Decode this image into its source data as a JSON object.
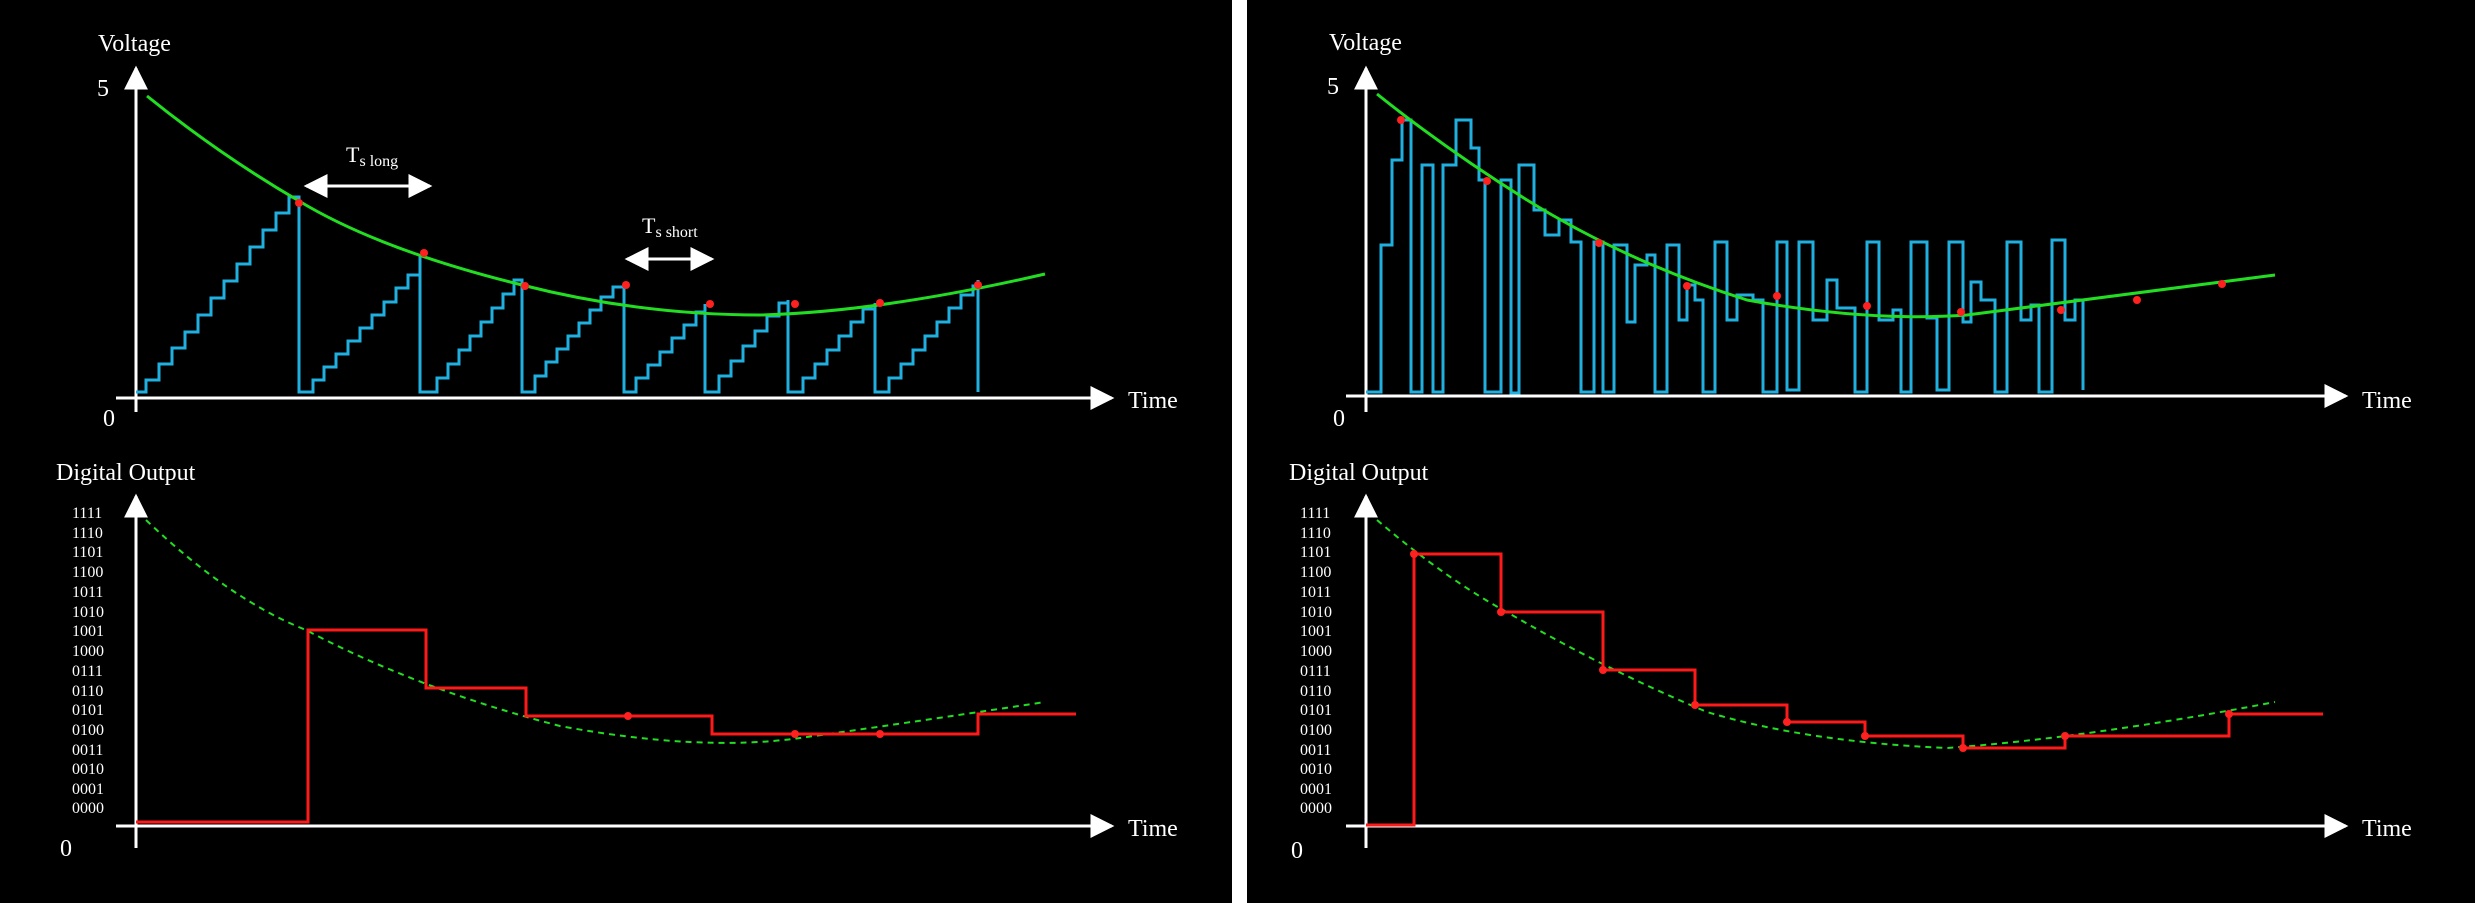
{
  "left": {
    "top": {
      "y_title": "Voltage",
      "y_max_label": "5",
      "origin_label": "0",
      "x_title": "Time",
      "ts_long": {
        "main": "T",
        "sub_s": "s",
        "sub_word": "long"
      },
      "ts_short": {
        "main": "T",
        "sub_s": "s",
        "sub_word": "short"
      }
    },
    "bottom": {
      "y_title": "Digital Output",
      "origin_label": "0",
      "x_title": "Time"
    }
  },
  "right": {
    "top": {
      "y_title": "Voltage",
      "y_max_label": "5",
      "origin_label": "0",
      "x_title": "Time"
    },
    "bottom": {
      "y_title": "Digital Output",
      "origin_label": "0",
      "x_title": "Time"
    }
  },
  "codes": [
    "1111",
    "1110",
    "1101",
    "1100",
    "1011",
    "1010",
    "1001",
    "1000",
    "0111",
    "0110",
    "0101",
    "0100",
    "0011",
    "0010",
    "0001",
    "0000"
  ],
  "colors": {
    "signal": "#22dd22",
    "staircase": "#1fb0e0",
    "digital": "#ff1a1a",
    "sample": "#ff2020",
    "axis": "#ffffff",
    "background": "#000000"
  }
}
